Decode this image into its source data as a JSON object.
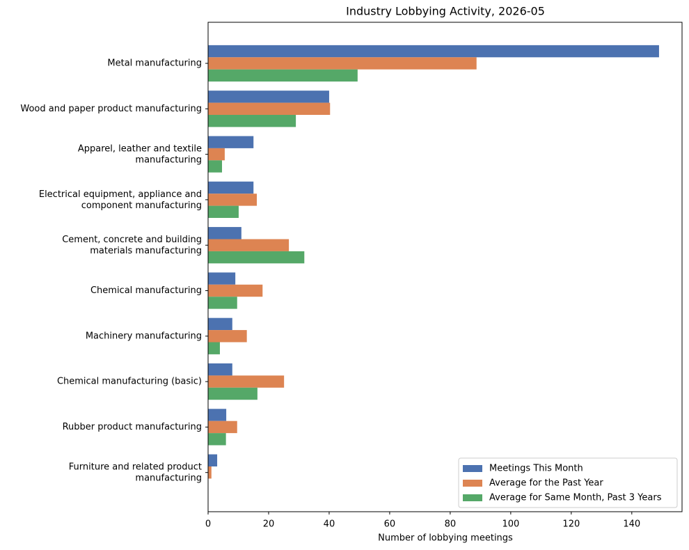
{
  "chart_data": {
    "type": "hbar",
    "title": "Industry Lobbying Activity, 2026-05",
    "x_label": "Number of lobbying meetings",
    "categories": [
      "Metal manufacturing",
      "Wood and paper product manufacturing",
      "Apparel, leather and textile\nmanufacturing",
      "Electrical equipment, appliance and\ncomponent manufacturing",
      "Cement, concrete and building\nmaterials manufacturing",
      "Chemical manufacturing",
      "Machinery manufacturing",
      "Chemical manufacturing (basic)",
      "Rubber product manufacturing",
      "Furniture and related product\nmanufacturing"
    ],
    "series": [
      {
        "name": "Meetings This Month",
        "color": "#4c72b0",
        "values": [
          149,
          40,
          15,
          15,
          11,
          9,
          8,
          8,
          6,
          3
        ]
      },
      {
        "name": "Average for the Past Year",
        "color": "#dd8452",
        "values": [
          88.7,
          40.3,
          5.5,
          16.1,
          26.7,
          18,
          12.8,
          25.1,
          9.6,
          1.1
        ]
      },
      {
        "name": "Average for Same Month, Past 3 Years",
        "color": "#55a868",
        "values": [
          49.4,
          29,
          4.6,
          10.1,
          31.8,
          9.6,
          3.9,
          16.3,
          5.9,
          0
        ]
      }
    ],
    "xlim": [
      0,
      156.6
    ],
    "xticks": [
      0,
      20,
      40,
      60,
      80,
      100,
      120,
      140
    ],
    "legend": "lower right"
  }
}
